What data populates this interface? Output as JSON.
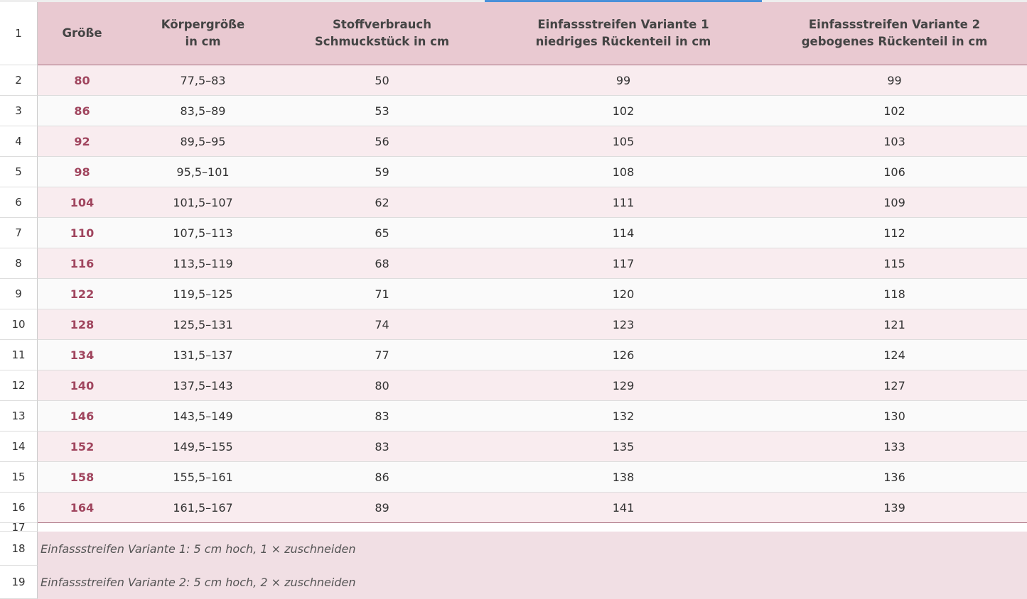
{
  "row_numbers": [
    1,
    2,
    3,
    4,
    5,
    6,
    7,
    8,
    9,
    10,
    11,
    12,
    13,
    14,
    15,
    16,
    17,
    18,
    19
  ],
  "table": {
    "header": [
      [
        "Größe"
      ],
      [
        "Körpergröße",
        "in cm"
      ],
      [
        "Stoffverbrauch",
        "Schmuckstück in cm"
      ],
      [
        "Einfassstreifen Variante 1",
        "niedriges Rückenteil in cm"
      ],
      [
        "Einfassstreifen Variante 2",
        "gebogenes Rückenteil in cm"
      ]
    ],
    "rows": [
      [
        80,
        "77,5–83",
        50,
        99,
        99
      ],
      [
        86,
        "83,5–89",
        53,
        102,
        102
      ],
      [
        92,
        "89,5–95",
        56,
        105,
        103
      ],
      [
        98,
        "95,5–101",
        59,
        108,
        106
      ],
      [
        104,
        "101,5–107",
        62,
        111,
        109
      ],
      [
        110,
        "107,5–113",
        65,
        114,
        112
      ],
      [
        116,
        "113,5–119",
        68,
        117,
        115
      ],
      [
        122,
        "119,5–125",
        71,
        120,
        118
      ],
      [
        128,
        "125,5–131",
        74,
        123,
        121
      ],
      [
        134,
        "131,5–137",
        77,
        126,
        124
      ],
      [
        140,
        "137,5–143",
        80,
        129,
        127
      ],
      [
        146,
        "143,5–149",
        83,
        132,
        130
      ],
      [
        152,
        "149,5–155",
        83,
        135,
        133
      ],
      [
        158,
        "155,5–161",
        86,
        138,
        136
      ],
      [
        164,
        "161,5–167",
        89,
        141,
        139
      ]
    ]
  },
  "notes": [
    "Einfassstreifen Variante 1: 5 cm hoch, 1 × zuschneiden",
    "Einfassstreifen Variante 2: 5 cm hoch, 2 × zuschneiden"
  ]
}
